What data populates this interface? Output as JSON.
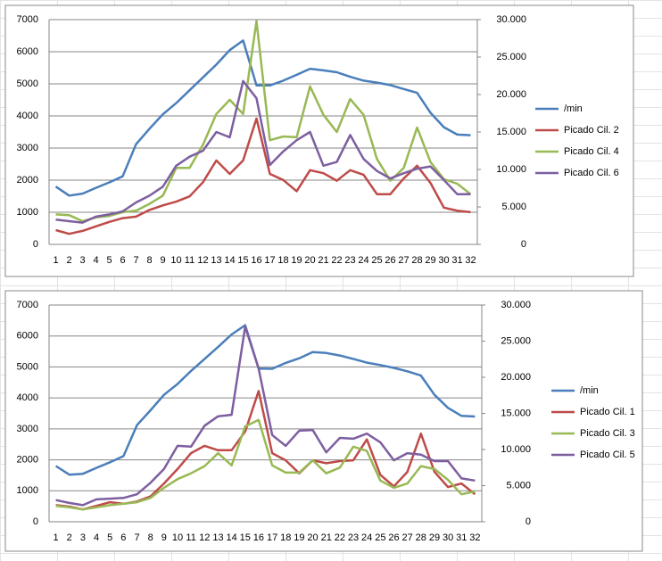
{
  "chart_data": [
    {
      "type": "line",
      "categories": [
        "1",
        "2",
        "3",
        "4",
        "5",
        "6",
        "7",
        "8",
        "9",
        "10",
        "11",
        "12",
        "13",
        "14",
        "15",
        "16",
        "17",
        "18",
        "19",
        "20",
        "21",
        "22",
        "23",
        "24",
        "25",
        "26",
        "27",
        "28",
        "29",
        "30",
        "31",
        "32"
      ],
      "ylim": [
        0,
        7000
      ],
      "yticks": [
        0,
        1000,
        2000,
        3000,
        4000,
        5000,
        6000,
        7000
      ],
      "y2lim": [
        0,
        30
      ],
      "y2ticks": [
        0,
        {
          "value": 5,
          "label": "5.000"
        },
        {
          "value": 10,
          "label": "10.000"
        },
        {
          "value": 15,
          "label": "15.000"
        },
        {
          "value": 20,
          "label": "20.000"
        },
        {
          "value": 25,
          "label": "25.000"
        },
        {
          "value": 30,
          "label": "30.000"
        }
      ],
      "grid": true,
      "legend": "right",
      "series": [
        {
          "name": "/min",
          "color": "#4a7ebb",
          "values": [
            1800,
            1520,
            1580,
            1760,
            1930,
            2120,
            3120,
            3600,
            4050,
            4400,
            4800,
            5200,
            5600,
            6050,
            6350,
            4950,
            4950,
            5100,
            5280,
            5470,
            5420,
            5360,
            5220,
            5100,
            5040,
            4960,
            4840,
            4720,
            4100,
            3650,
            3420,
            3400
          ]
        },
        {
          "name": "Picado Cil. 2",
          "color": "#be4b48",
          "axis": "y2",
          "values": [
            1.9,
            1.4,
            1.8,
            2.4,
            3.0,
            3.5,
            3.7,
            4.6,
            5.2,
            5.7,
            6.4,
            8.3,
            11.2,
            9.4,
            11.2,
            16.8,
            9.4,
            8.6,
            7.1,
            9.9,
            9.5,
            8.5,
            9.9,
            9.3,
            6.7,
            6.7,
            8.8,
            10.5,
            8.2,
            4.9,
            4.5,
            4.3
          ]
        },
        {
          "name": "Picado Cil. 4",
          "color": "#98b954",
          "axis": "y2",
          "values": [
            4.0,
            3.9,
            3.1,
            3.6,
            3.8,
            4.3,
            4.5,
            5.4,
            6.5,
            10.2,
            10.2,
            13.3,
            17.4,
            19.3,
            17.4,
            29.8,
            13.9,
            14.4,
            14.3,
            21.1,
            17.3,
            15.0,
            19.4,
            17.3,
            11.4,
            8.5,
            10.2,
            15.6,
            11.0,
            8.7,
            8.1,
            6.7
          ]
        },
        {
          "name": "Picado Cil. 6",
          "color": "#7d5fa0",
          "axis": "y2",
          "values": [
            3.3,
            3.1,
            2.9,
            3.7,
            4.0,
            4.4,
            5.6,
            6.5,
            7.7,
            10.5,
            11.7,
            12.5,
            15.0,
            14.3,
            21.8,
            19.5,
            10.6,
            12.4,
            13.9,
            15.0,
            10.5,
            11.0,
            14.6,
            11.4,
            9.8,
            8.8,
            9.5,
            10.1,
            10.4,
            8.6,
            6.7,
            6.7
          ]
        }
      ]
    },
    {
      "type": "line",
      "categories": [
        "1",
        "2",
        "3",
        "4",
        "5",
        "6",
        "7",
        "8",
        "9",
        "10",
        "11",
        "12",
        "13",
        "14",
        "15",
        "16",
        "17",
        "18",
        "19",
        "20",
        "21",
        "22",
        "23",
        "24",
        "25",
        "26",
        "27",
        "28",
        "29",
        "30",
        "31",
        "32"
      ],
      "ylim": [
        0,
        7000
      ],
      "yticks": [
        0,
        1000,
        2000,
        3000,
        4000,
        5000,
        6000,
        7000
      ],
      "y2lim": [
        0,
        30
      ],
      "y2ticks": [
        0,
        {
          "value": 5,
          "label": "5.000"
        },
        {
          "value": 10,
          "label": "10.000"
        },
        {
          "value": 15,
          "label": "15.000"
        },
        {
          "value": 20,
          "label": "20.000"
        },
        {
          "value": 25,
          "label": "25.000"
        },
        {
          "value": 30,
          "label": "30.000"
        }
      ],
      "grid": true,
      "legend": "right",
      "series": [
        {
          "name": "/min",
          "color": "#4a7ebb",
          "values": [
            1800,
            1520,
            1550,
            1740,
            1920,
            2120,
            3120,
            3600,
            4100,
            4450,
            4870,
            5260,
            5650,
            6050,
            6350,
            4950,
            4940,
            5130,
            5280,
            5480,
            5450,
            5370,
            5260,
            5140,
            5060,
            4970,
            4860,
            4720,
            4100,
            3680,
            3420,
            3400
          ]
        },
        {
          "name": "Picado Cil. 1",
          "color": "#be4b48",
          "axis": "y2",
          "values": [
            2.3,
            2.1,
            1.7,
            2.2,
            2.7,
            2.5,
            2.8,
            3.5,
            5.3,
            7.3,
            9.5,
            10.5,
            9.9,
            9.9,
            12.5,
            18.1,
            9.5,
            8.5,
            6.7,
            8.5,
            8.1,
            8.4,
            8.5,
            11.4,
            6.5,
            4.9,
            6.9,
            12.2,
            6.9,
            4.8,
            5.3,
            3.8
          ]
        },
        {
          "name": "Picado Cil. 3",
          "color": "#98b954",
          "axis": "y2",
          "values": [
            2.2,
            2.0,
            1.7,
            2.0,
            2.3,
            2.5,
            2.7,
            3.3,
            4.7,
            5.9,
            6.7,
            7.7,
            9.5,
            7.8,
            13.2,
            14.1,
            7.8,
            6.8,
            6.8,
            8.5,
            6.7,
            7.5,
            10.4,
            9.8,
            5.7,
            4.7,
            5.3,
            7.7,
            7.3,
            5.8,
            3.8,
            4.2
          ]
        },
        {
          "name": "Picado Cil. 5",
          "color": "#7d5fa0",
          "axis": "y2",
          "values": [
            3.0,
            2.6,
            2.3,
            3.1,
            3.2,
            3.3,
            3.8,
            5.4,
            7.3,
            10.5,
            10.4,
            13.3,
            14.6,
            14.8,
            27.0,
            21.2,
            12.0,
            10.5,
            12.6,
            12.7,
            9.6,
            11.6,
            11.5,
            12.2,
            11.0,
            8.5,
            9.5,
            9.3,
            8.4,
            8.4,
            6.0,
            5.7
          ]
        }
      ]
    }
  ]
}
